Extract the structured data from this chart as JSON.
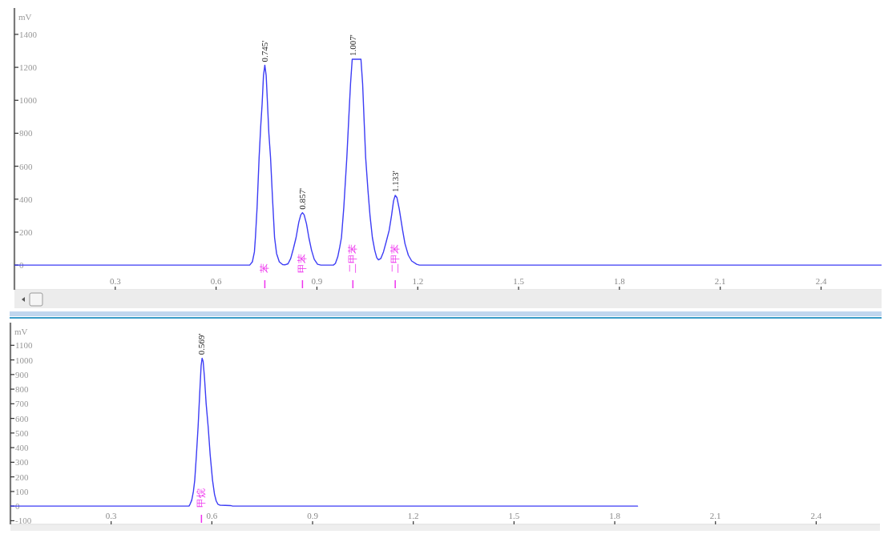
{
  "chart_data": [
    {
      "type": "line",
      "ylabel": "mV",
      "x": [
        0,
        0.7,
        0.708,
        0.714,
        0.717,
        0.722,
        0.728,
        0.733,
        0.737,
        0.741,
        0.745,
        0.749,
        0.753,
        0.757,
        0.762,
        0.768,
        0.774,
        0.78,
        0.788,
        0.798,
        0.806,
        0.814,
        0.822,
        0.83,
        0.838,
        0.846,
        0.852,
        0.857,
        0.862,
        0.869,
        0.876,
        0.884,
        0.892,
        0.902,
        0.912,
        0.949,
        0.955,
        0.962,
        0.968,
        0.973,
        0.98,
        0.989,
        0.995,
        1.0,
        1.005,
        1.031,
        1.036,
        1.041,
        1.045,
        1.052,
        1.058,
        1.065,
        1.072,
        1.078,
        1.083,
        1.09,
        1.098,
        1.106,
        1.115,
        1.122,
        1.128,
        1.133,
        1.138,
        1.145,
        1.155,
        1.162,
        1.172,
        1.182,
        1.197,
        1.205,
        2.58
      ],
      "series": [
        {
          "color": "#3c3cf5",
          "values": [
            0,
            0,
            20,
            80,
            167,
            350,
            653,
            850,
            978,
            1150,
            1213,
            1150,
            978,
            800,
            653,
            400,
            167,
            70,
            20,
            3,
            2,
            8,
            40,
            100,
            167,
            260,
            305,
            318,
            305,
            250,
            167,
            90,
            35,
            5,
            0,
            0,
            10,
            50,
            110,
            167,
            350,
            653,
            900,
            1100,
            1249,
            1249,
            1100,
            850,
            653,
            450,
            300,
            167,
            90,
            45,
            32,
            40,
            80,
            140,
            211,
            300,
            390,
            423,
            410,
            340,
            211,
            130,
            60,
            25,
            5,
            0,
            0
          ]
        }
      ],
      "xlim": [
        0,
        2.58
      ],
      "ylim": [
        -150,
        1560
      ],
      "xticks": [
        0.3,
        0.6,
        0.9,
        1.2,
        1.5,
        1.8,
        2.1,
        2.4
      ],
      "yticks": [
        0,
        200,
        400,
        600,
        800,
        1000,
        1200,
        1400
      ],
      "annotations": [
        {
          "text": "0.745'",
          "x": 0.745,
          "y": 1213
        },
        {
          "text": "0.857'",
          "x": 0.857,
          "y": 318
        },
        {
          "text": "1.007'",
          "x": 1.007,
          "y": 1249
        },
        {
          "text": "1.133'",
          "x": 1.133,
          "y": 423
        },
        "苯",
        "甲苯",
        "二甲苯",
        "二甲苯"
      ]
    },
    {
      "type": "line",
      "ylabel": "mV",
      "x": [
        0,
        0.532,
        0.535,
        0.54,
        0.545,
        0.549,
        0.554,
        0.559,
        0.564,
        0.568,
        0.571,
        0.574,
        0.578,
        0.583,
        0.589,
        0.595,
        0.602,
        0.608,
        0.613,
        0.618,
        0.625,
        0.64,
        0.655,
        0.662,
        1.868
      ],
      "series": [
        {
          "color": "#3c3cf5",
          "values": [
            0,
            0,
            13,
            40,
            100,
            177,
            350,
            543,
            780,
            960,
            1012,
            990,
            880,
            700,
            543,
            350,
            177,
            80,
            35,
            13,
            6,
            5,
            4,
            0,
            0
          ]
        }
      ],
      "xlim": [
        0,
        2.59
      ],
      "ylim": [
        -125,
        1255
      ],
      "xticks": [
        0.3,
        0.6,
        0.9,
        1.2,
        1.5,
        1.8,
        2.1,
        2.4
      ],
      "yticks": [
        -100,
        0,
        100,
        200,
        300,
        400,
        500,
        600,
        700,
        800,
        900,
        1000,
        1100
      ],
      "annotations": [
        {
          "text": "0.569'",
          "x": 0.569,
          "y": 1012
        },
        "甲烷"
      ]
    }
  ]
}
